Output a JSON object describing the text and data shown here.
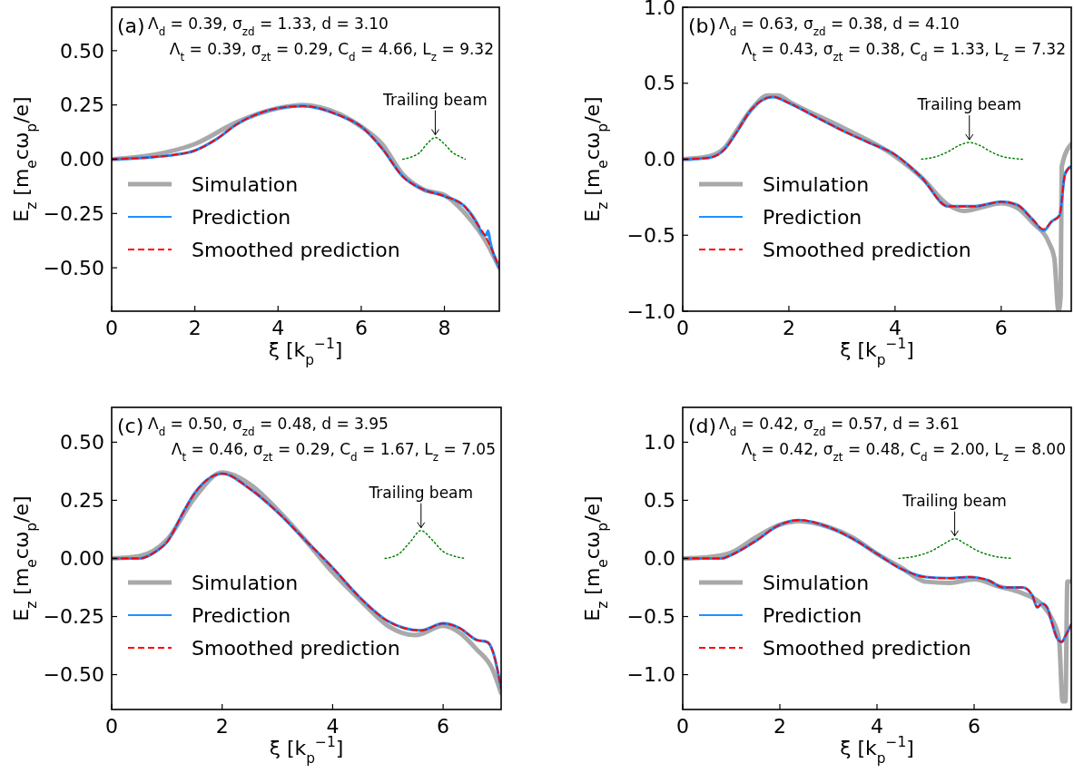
{
  "chart_data": [
    {
      "type": "line",
      "xlabel": "ξ [k$_{p}$$^{−1}$]",
      "ylabel": "E$_{z}$ [m$_{e}$cω$_{p}$/e]",
      "xlim": [
        0,
        9.32
      ],
      "ylim": [
        -0.7,
        0.7
      ],
      "xticks": [
        0,
        2,
        4,
        6,
        8
      ],
      "yticks": [
        {
          "value": -0.5,
          "label": "−0.50"
        },
        {
          "value": -0.25,
          "label": "−0.25"
        },
        {
          "value": 0,
          "label": "0.00"
        },
        {
          "value": 0.25,
          "label": "0.25"
        },
        {
          "value": 0.5,
          "label": "0.50"
        }
      ],
      "legend": "bottom left",
      "annotations": [
        "(a)",
        "Λ$_{d}$ = 0.39, σ$_{zd}$ = 1.33, d = 3.10",
        "Λ$_{t}$ = 0.39, σ$_{zt}$ = 0.29, C$_{d}$ = 4.66, L$_{z}$ = 9.32",
        {
          "text": "Trailing beam",
          "x": 7.78,
          "y": 0.1
        }
      ],
      "series": [
        {
          "name": "Simulation",
          "color": "#a9a9a9",
          "line_style": "solid",
          "x": [
            0,
            1,
            2,
            3,
            4,
            4.6,
            5,
            6,
            6.5,
            7,
            7.5,
            8,
            8.5,
            9,
            9.32
          ],
          "values": [
            0,
            0.02,
            0.07,
            0.17,
            0.235,
            0.25,
            0.24,
            0.15,
            0.07,
            -0.07,
            -0.14,
            -0.165,
            -0.25,
            -0.38,
            -0.5
          ]
        },
        {
          "name": "Prediction",
          "color": "#1e90ff",
          "line_style": "solid",
          "x": [
            0,
            1,
            1.5,
            2,
            2.5,
            3,
            4,
            4.6,
            5.5,
            6,
            6.5,
            7,
            7.5,
            8,
            8.5,
            8.8,
            8.9,
            9,
            9.05,
            9.1,
            9.32
          ],
          "values": [
            0,
            0.01,
            0.02,
            0.04,
            0.09,
            0.16,
            0.235,
            0.245,
            0.2,
            0.15,
            0.05,
            -0.08,
            -0.14,
            -0.17,
            -0.22,
            -0.3,
            -0.34,
            -0.35,
            -0.33,
            -0.38,
            -0.5
          ]
        },
        {
          "name": "Smoothed prediction",
          "color": "#ff0000",
          "line_style": "dashed",
          "x": [
            0,
            1,
            1.5,
            2,
            2.5,
            3,
            4,
            4.6,
            5.5,
            6,
            6.5,
            7,
            7.5,
            8,
            8.5,
            8.8,
            9,
            9.32
          ],
          "values": [
            0,
            0.01,
            0.02,
            0.04,
            0.09,
            0.16,
            0.235,
            0.245,
            0.2,
            0.15,
            0.05,
            -0.08,
            -0.14,
            -0.17,
            -0.22,
            -0.3,
            -0.36,
            -0.5
          ]
        },
        {
          "color": "#008000",
          "line_style": "dotted",
          "x": [
            7,
            7.2,
            7.4,
            7.6,
            7.78,
            8,
            8.2,
            8.4,
            8.5
          ],
          "values": [
            0,
            0.01,
            0.03,
            0.075,
            0.1,
            0.07,
            0.03,
            0.01,
            0
          ]
        }
      ]
    },
    {
      "type": "line",
      "xlabel": "ξ [k$_{p}$$^{−1}$]",
      "ylabel": "E$_{z}$ [m$_{e}$cω$_{p}$/e]",
      "xlim": [
        0,
        7.32
      ],
      "ylim": [
        -1,
        1
      ],
      "xticks": [
        0,
        2,
        4,
        6
      ],
      "yticks": [
        {
          "value": -1,
          "label": "−1.0"
        },
        {
          "value": -0.5,
          "label": "−0.5"
        },
        {
          "value": 0,
          "label": "0.0"
        },
        {
          "value": 0.5,
          "label": "0.5"
        },
        {
          "value": 1,
          "label": "1.0"
        }
      ],
      "legend": "bottom left",
      "annotations": [
        "(b)",
        "Λ$_{d}$ = 0.63, σ$_{zd}$ = 0.38, d = 4.10",
        "Λ$_{t}$ = 0.43, σ$_{zt}$ = 0.38, C$_{d}$ = 1.33, L$_{z}$ = 7.32",
        {
          "text": "Trailing beam",
          "x": 5.4,
          "y": 0.11
        }
      ],
      "series": [
        {
          "name": "Simulation",
          "color": "#a9a9a9",
          "line_style": "solid",
          "x": [
            0,
            0.5,
            0.8,
            1,
            1.3,
            1.6,
            1.8,
            2,
            3,
            4,
            4.5,
            5,
            5.3,
            5.7,
            6,
            6.3,
            6.6,
            6.9,
            7,
            7.08,
            7.12,
            7.14,
            7.32
          ],
          "values": [
            0,
            0.02,
            0.08,
            0.18,
            0.33,
            0.42,
            0.42,
            0.38,
            0.21,
            0.02,
            -0.12,
            -0.3,
            -0.34,
            -0.31,
            -0.29,
            -0.32,
            -0.42,
            -0.55,
            -0.65,
            -1,
            -0.9,
            -0.05,
            0.1
          ]
        },
        {
          "name": "Prediction",
          "color": "#1e90ff",
          "line_style": "solid",
          "x": [
            0,
            0.5,
            0.8,
            1,
            1.3,
            1.7,
            2,
            2.5,
            3,
            3.5,
            4,
            4.5,
            5,
            5.5,
            6,
            6.3,
            6.6,
            6.8,
            6.95,
            7.1,
            7.2,
            7.3
          ],
          "values": [
            0,
            0.01,
            0.07,
            0.17,
            0.33,
            0.41,
            0.37,
            0.28,
            0.19,
            0.11,
            0.03,
            -0.12,
            -0.31,
            -0.31,
            -0.28,
            -0.3,
            -0.4,
            -0.47,
            -0.41,
            -0.37,
            -0.1,
            -0.05
          ]
        },
        {
          "name": "Smoothed prediction",
          "color": "#ff0000",
          "line_style": "dashed",
          "x": [
            0,
            0.5,
            0.8,
            1,
            1.3,
            1.7,
            2,
            2.5,
            3,
            3.5,
            4,
            4.5,
            5,
            5.5,
            6,
            6.3,
            6.6,
            6.8,
            6.95,
            7.1,
            7.2,
            7.3
          ],
          "values": [
            0,
            0.01,
            0.07,
            0.17,
            0.33,
            0.41,
            0.37,
            0.28,
            0.19,
            0.11,
            0.03,
            -0.12,
            -0.31,
            -0.31,
            -0.28,
            -0.3,
            -0.4,
            -0.46,
            -0.41,
            -0.37,
            -0.1,
            -0.05
          ]
        },
        {
          "color": "#008000",
          "line_style": "dotted",
          "x": [
            4.5,
            4.8,
            5,
            5.2,
            5.4,
            5.6,
            5.8,
            6,
            6.4
          ],
          "values": [
            0,
            0.02,
            0.05,
            0.09,
            0.11,
            0.09,
            0.05,
            0.02,
            0
          ]
        }
      ]
    },
    {
      "type": "line",
      "xlabel": "ξ [k$_{p}$$^{−1}$]",
      "ylabel": "E$_{z}$ [m$_{e}$cω$_{p}$/e]",
      "xlim": [
        0,
        7.05
      ],
      "ylim": [
        -0.65,
        0.65
      ],
      "xticks": [
        0,
        2,
        4,
        6
      ],
      "yticks": [
        {
          "value": -0.5,
          "label": "−0.50"
        },
        {
          "value": -0.25,
          "label": "−0.25"
        },
        {
          "value": 0,
          "label": "0.00"
        },
        {
          "value": 0.25,
          "label": "0.25"
        },
        {
          "value": 0.5,
          "label": "0.50"
        }
      ],
      "legend": "bottom left",
      "annotations": [
        "(c)",
        "Λ$_{d}$ = 0.50, σ$_{zd}$ = 0.48, d = 3.95",
        "Λ$_{t}$ = 0.46, σ$_{zt}$ = 0.29, C$_{d}$ = 1.67, L$_{z}$ = 7.05",
        {
          "text": "Trailing beam",
          "x": 5.6,
          "y": 0.12
        }
      ],
      "series": [
        {
          "name": "Simulation",
          "color": "#a9a9a9",
          "line_style": "solid",
          "x": [
            0,
            0.5,
            1,
            1.5,
            2,
            2.5,
            3,
            3.5,
            4,
            4.5,
            5,
            5.5,
            6,
            6.3,
            6.6,
            6.9,
            7.05
          ],
          "values": [
            0,
            0.01,
            0.08,
            0.26,
            0.37,
            0.32,
            0.21,
            0.08,
            -0.06,
            -0.18,
            -0.29,
            -0.33,
            -0.29,
            -0.32,
            -0.39,
            -0.48,
            -0.58
          ]
        },
        {
          "name": "Prediction",
          "color": "#1e90ff",
          "line_style": "solid",
          "x": [
            0,
            0.5,
            0.8,
            1,
            1.3,
            1.5,
            1.8,
            2,
            2.5,
            3,
            3.5,
            4,
            4.5,
            5,
            5.3,
            5.6,
            6,
            6.3,
            6.6,
            6.8,
            6.9,
            7.05
          ],
          "values": [
            0,
            0,
            0.03,
            0.07,
            0.2,
            0.28,
            0.35,
            0.365,
            0.3,
            0.2,
            0.08,
            -0.04,
            -0.17,
            -0.27,
            -0.3,
            -0.31,
            -0.28,
            -0.3,
            -0.35,
            -0.36,
            -0.4,
            -0.56
          ]
        },
        {
          "name": "Smoothed prediction",
          "color": "#ff0000",
          "line_style": "dashed",
          "x": [
            0,
            0.5,
            0.8,
            1,
            1.3,
            1.5,
            1.8,
            2,
            2.5,
            3,
            3.5,
            4,
            4.5,
            5,
            5.3,
            5.6,
            6,
            6.3,
            6.6,
            6.8,
            6.9,
            7.05
          ],
          "values": [
            0,
            0,
            0.03,
            0.07,
            0.2,
            0.28,
            0.35,
            0.365,
            0.3,
            0.2,
            0.08,
            -0.04,
            -0.17,
            -0.27,
            -0.3,
            -0.31,
            -0.28,
            -0.3,
            -0.35,
            -0.36,
            -0.4,
            -0.56
          ]
        },
        {
          "color": "#008000",
          "line_style": "dotted",
          "x": [
            4.95,
            5.2,
            5.4,
            5.6,
            5.8,
            6,
            6.2,
            6.4
          ],
          "values": [
            0,
            0.02,
            0.07,
            0.12,
            0.08,
            0.03,
            0.01,
            0
          ]
        }
      ]
    },
    {
      "type": "line",
      "xlabel": "ξ [k$_{p}$$^{−1}$]",
      "ylabel": "E$_{z}$ [m$_{e}$cω$_{p}$/e]",
      "xlim": [
        0,
        8
      ],
      "ylim": [
        -1.3,
        1.3
      ],
      "xticks": [
        0,
        2,
        4,
        6
      ],
      "yticks": [
        {
          "value": -1,
          "label": "−1.0"
        },
        {
          "value": -0.5,
          "label": "−0.5"
        },
        {
          "value": 0,
          "label": "0.0"
        },
        {
          "value": 0.5,
          "label": "0.5"
        },
        {
          "value": 1,
          "label": "1.0"
        }
      ],
      "legend": "bottom left",
      "annotations": [
        "(d)",
        "Λ$_{d}$ = 0.42, σ$_{zd}$ = 0.57, d = 3.61",
        "Λ$_{t}$ = 0.42, σ$_{zt}$ = 0.48, C$_{d}$ = 2.00, L$_{z}$ = 8.00",
        {
          "text": "Trailing beam",
          "x": 5.6,
          "y": 0.17
        }
      ],
      "series": [
        {
          "name": "Simulation",
          "color": "#a9a9a9",
          "line_style": "solid",
          "x": [
            0,
            0.5,
            1,
            1.5,
            2,
            2.4,
            3,
            3.5,
            4,
            4.5,
            5,
            5.5,
            6,
            6.5,
            7,
            7.4,
            7.6,
            7.75,
            7.82,
            7.88,
            7.92,
            8
          ],
          "values": [
            0,
            0.01,
            0.05,
            0.18,
            0.29,
            0.32,
            0.27,
            0.18,
            0.04,
            -0.08,
            -0.2,
            -0.21,
            -0.18,
            -0.24,
            -0.3,
            -0.4,
            -0.52,
            -0.7,
            -1.23,
            -1.23,
            -0.2,
            -0.2
          ]
        },
        {
          "name": "Prediction",
          "color": "#1e90ff",
          "line_style": "solid",
          "x": [
            0,
            0.5,
            0.8,
            1,
            1.5,
            2,
            2.4,
            3,
            3.5,
            4,
            4.5,
            5,
            5.5,
            5.9,
            6.3,
            6.6,
            7,
            7.2,
            7.3,
            7.4,
            7.5,
            7.6,
            7.7,
            7.8,
            7.9,
            8
          ],
          "values": [
            0,
            0,
            0,
            0.03,
            0.15,
            0.29,
            0.33,
            0.27,
            0.17,
            0.04,
            -0.09,
            -0.16,
            -0.17,
            -0.16,
            -0.19,
            -0.25,
            -0.25,
            -0.32,
            -0.42,
            -0.39,
            -0.42,
            -0.55,
            -0.68,
            -0.72,
            -0.65,
            -0.57
          ]
        },
        {
          "name": "Smoothed prediction",
          "color": "#ff0000",
          "line_style": "dashed",
          "x": [
            0,
            0.5,
            0.8,
            1,
            1.5,
            2,
            2.4,
            3,
            3.5,
            4,
            4.5,
            5,
            5.5,
            5.9,
            6.3,
            6.6,
            7,
            7.2,
            7.3,
            7.4,
            7.5,
            7.6,
            7.7,
            7.8,
            7.9,
            8
          ],
          "values": [
            0,
            0,
            0,
            0.03,
            0.15,
            0.29,
            0.33,
            0.27,
            0.17,
            0.04,
            -0.09,
            -0.16,
            -0.17,
            -0.16,
            -0.19,
            -0.25,
            -0.25,
            -0.32,
            -0.42,
            -0.39,
            -0.42,
            -0.55,
            -0.68,
            -0.72,
            -0.65,
            -0.57
          ]
        },
        {
          "color": "#008000",
          "line_style": "dotted",
          "x": [
            4.45,
            4.8,
            5.1,
            5.4,
            5.6,
            5.8,
            6.1,
            6.4,
            6.8
          ],
          "values": [
            0,
            0.02,
            0.06,
            0.13,
            0.17,
            0.13,
            0.06,
            0.02,
            0
          ]
        }
      ]
    }
  ]
}
